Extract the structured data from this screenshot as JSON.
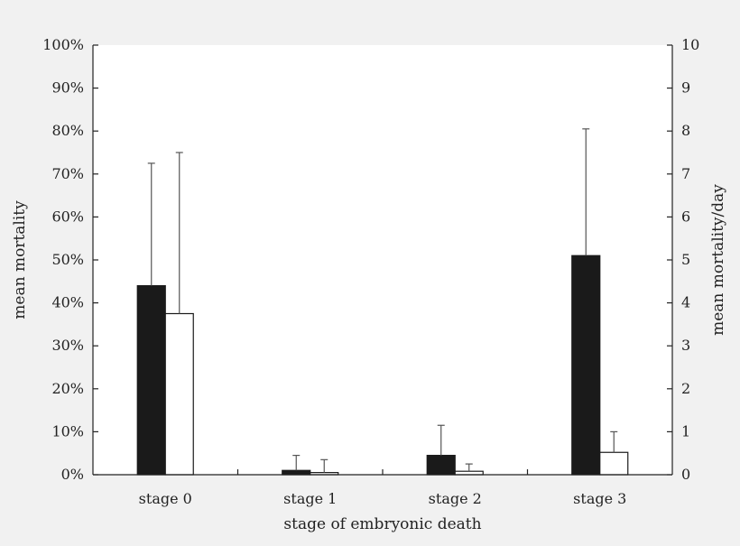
{
  "chart_data": {
    "type": "bar",
    "xlabel": "stage of embryonic death",
    "ylabel_left": "mean mortality",
    "ylabel_right": "mean mortality/day",
    "categories": [
      "stage 0",
      "stage 1",
      "stage 2",
      "stage 3"
    ],
    "ylim_left": [
      0,
      100
    ],
    "ylim_right": [
      0,
      10
    ],
    "y_ticks_left": [
      "0%",
      "10%",
      "20%",
      "30%",
      "40%",
      "50%",
      "60%",
      "70%",
      "80%",
      "90%",
      "100%"
    ],
    "y_ticks_right": [
      "0",
      "1",
      "2",
      "3",
      "4",
      "5",
      "6",
      "7",
      "8",
      "9",
      "10"
    ],
    "series": [
      {
        "axis": "left",
        "fill": "#1a1a1a",
        "values": [
          44,
          1,
          4.5,
          51
        ],
        "error_upper": [
          72.5,
          4.5,
          11.5,
          80.5
        ]
      },
      {
        "axis": "right",
        "fill": "#ffffff",
        "values": [
          3.75,
          0.05,
          0.08,
          0.52
        ],
        "error_upper": [
          7.5,
          0.35,
          0.25,
          1.0
        ]
      }
    ],
    "grid": false,
    "legend": "none"
  }
}
